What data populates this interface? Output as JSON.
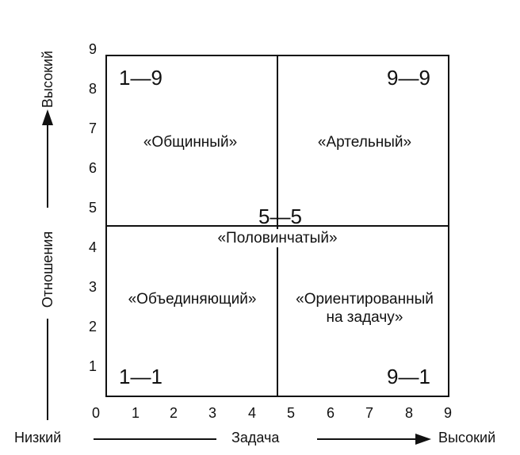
{
  "grid": {
    "codes": {
      "top_left": "1—9",
      "top_right": "9—9",
      "center": "5—5",
      "bottom_left": "1—1",
      "bottom_right": "9—1"
    },
    "styles": {
      "top_left": "«Общинный»",
      "top_right": "«Артельный»",
      "center": "«Половинчатый»",
      "bottom_left": "«Объединяющий»",
      "bottom_right_line1": "«Ориентированный",
      "bottom_right_line2": "на задачу»"
    }
  },
  "y_axis": {
    "title": "Отношения",
    "high": "Высокий",
    "ticks": [
      "9",
      "8",
      "7",
      "6",
      "5",
      "4",
      "3",
      "2",
      "1"
    ]
  },
  "x_axis": {
    "title": "Задача",
    "low": "Низкий",
    "high": "Высокий",
    "ticks": [
      "0",
      "1",
      "2",
      "3",
      "4",
      "5",
      "6",
      "7",
      "8",
      "9"
    ]
  }
}
